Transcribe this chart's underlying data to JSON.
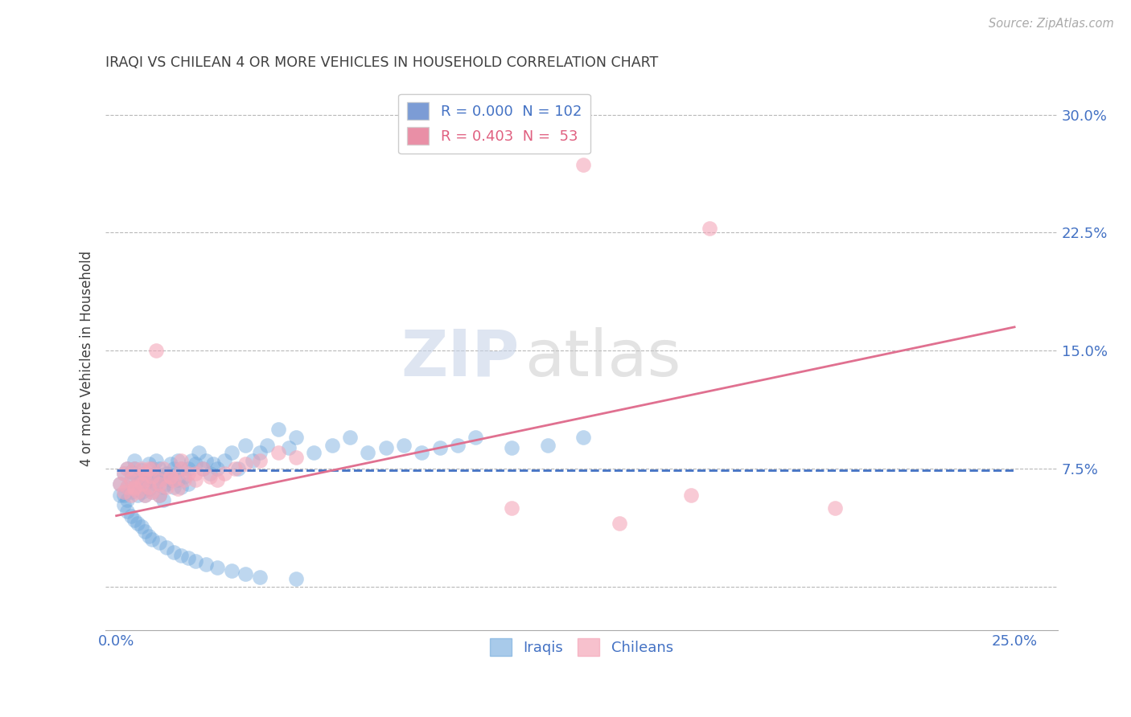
{
  "title": "IRAQI VS CHILEAN 4 OR MORE VEHICLES IN HOUSEHOLD CORRELATION CHART",
  "source": "Source: ZipAtlas.com",
  "ylabel_label": "4 or more Vehicles in Household",
  "yticks": [
    0.0,
    0.075,
    0.15,
    0.225,
    0.3
  ],
  "ytick_labels": [
    "",
    "7.5%",
    "15.0%",
    "22.5%",
    "30.0%"
  ],
  "xticks": [
    0.0,
    0.25
  ],
  "xtick_labels": [
    "0.0%",
    "25.0%"
  ],
  "xlim": [
    -0.003,
    0.262
  ],
  "ylim": [
    -0.028,
    0.318
  ],
  "watermark_zip": "ZIP",
  "watermark_atlas": "atlas",
  "legend_entries": [
    {
      "label": "R = 0.000  N = 102",
      "color": "#4472c4"
    },
    {
      "label": "R = 0.403  N =  53",
      "color": "#e06080"
    }
  ],
  "iraqi_color": "#6fa8dc",
  "chilean_color": "#f4a7b9",
  "iraqi_line_color": "#4472c4",
  "chilean_line_color": "#e07090",
  "title_color": "#404040",
  "axis_color": "#4472c4",
  "background_color": "#ffffff",
  "grid_color": "#b8b8b8",
  "iraqi_scatter_x": [
    0.001,
    0.002,
    0.002,
    0.003,
    0.003,
    0.003,
    0.004,
    0.004,
    0.004,
    0.005,
    0.005,
    0.005,
    0.006,
    0.006,
    0.006,
    0.007,
    0.007,
    0.007,
    0.008,
    0.008,
    0.008,
    0.009,
    0.009,
    0.009,
    0.01,
    0.01,
    0.01,
    0.011,
    0.011,
    0.011,
    0.012,
    0.012,
    0.012,
    0.013,
    0.013,
    0.013,
    0.014,
    0.014,
    0.015,
    0.015,
    0.016,
    0.016,
    0.017,
    0.017,
    0.018,
    0.018,
    0.019,
    0.02,
    0.02,
    0.021,
    0.022,
    0.023,
    0.024,
    0.025,
    0.026,
    0.027,
    0.028,
    0.03,
    0.032,
    0.034,
    0.036,
    0.038,
    0.04,
    0.042,
    0.045,
    0.048,
    0.05,
    0.055,
    0.06,
    0.065,
    0.07,
    0.075,
    0.08,
    0.085,
    0.09,
    0.095,
    0.1,
    0.11,
    0.12,
    0.13,
    0.001,
    0.002,
    0.003,
    0.004,
    0.005,
    0.006,
    0.007,
    0.008,
    0.009,
    0.01,
    0.012,
    0.014,
    0.016,
    0.018,
    0.02,
    0.022,
    0.025,
    0.028,
    0.032,
    0.036,
    0.04,
    0.05
  ],
  "iraqi_scatter_y": [
    0.065,
    0.072,
    0.058,
    0.075,
    0.063,
    0.055,
    0.068,
    0.073,
    0.06,
    0.075,
    0.08,
    0.062,
    0.07,
    0.065,
    0.058,
    0.074,
    0.068,
    0.06,
    0.072,
    0.065,
    0.058,
    0.078,
    0.07,
    0.062,
    0.075,
    0.068,
    0.06,
    0.08,
    0.072,
    0.065,
    0.075,
    0.068,
    0.058,
    0.07,
    0.063,
    0.055,
    0.072,
    0.065,
    0.078,
    0.068,
    0.075,
    0.063,
    0.08,
    0.068,
    0.075,
    0.063,
    0.07,
    0.075,
    0.065,
    0.08,
    0.078,
    0.085,
    0.075,
    0.08,
    0.072,
    0.078,
    0.075,
    0.08,
    0.085,
    0.075,
    0.09,
    0.08,
    0.085,
    0.09,
    0.1,
    0.088,
    0.095,
    0.085,
    0.09,
    0.095,
    0.085,
    0.088,
    0.09,
    0.085,
    0.088,
    0.09,
    0.095,
    0.088,
    0.09,
    0.095,
    0.058,
    0.052,
    0.048,
    0.045,
    0.042,
    0.04,
    0.038,
    0.035,
    0.032,
    0.03,
    0.028,
    0.025,
    0.022,
    0.02,
    0.018,
    0.016,
    0.014,
    0.012,
    0.01,
    0.008,
    0.006,
    0.005
  ],
  "chilean_scatter_x": [
    0.001,
    0.002,
    0.002,
    0.003,
    0.003,
    0.004,
    0.004,
    0.005,
    0.005,
    0.006,
    0.006,
    0.007,
    0.007,
    0.008,
    0.008,
    0.009,
    0.009,
    0.01,
    0.01,
    0.011,
    0.012,
    0.012,
    0.013,
    0.014,
    0.015,
    0.016,
    0.017,
    0.018,
    0.019,
    0.02,
    0.022,
    0.024,
    0.026,
    0.028,
    0.03,
    0.033,
    0.036,
    0.04,
    0.045,
    0.05,
    0.11,
    0.14,
    0.165,
    0.005,
    0.008,
    0.01,
    0.012,
    0.015,
    0.018,
    0.022,
    0.13,
    0.16,
    0.2
  ],
  "chilean_scatter_y": [
    0.065,
    0.072,
    0.06,
    0.075,
    0.063,
    0.068,
    0.058,
    0.075,
    0.063,
    0.07,
    0.06,
    0.075,
    0.065,
    0.072,
    0.058,
    0.075,
    0.063,
    0.07,
    0.06,
    0.15,
    0.068,
    0.058,
    0.075,
    0.063,
    0.07,
    0.068,
    0.062,
    0.075,
    0.068,
    0.072,
    0.068,
    0.075,
    0.07,
    0.068,
    0.072,
    0.075,
    0.078,
    0.08,
    0.085,
    0.082,
    0.05,
    0.04,
    0.228,
    0.062,
    0.068,
    0.075,
    0.065,
    0.07,
    0.08,
    0.072,
    0.268,
    0.058,
    0.05
  ],
  "iraqi_line_x": [
    0.0,
    0.25
  ],
  "iraqi_line_y": [
    0.074,
    0.074
  ],
  "chilean_line_x": [
    0.0,
    0.25
  ],
  "chilean_line_y": [
    0.045,
    0.165
  ]
}
